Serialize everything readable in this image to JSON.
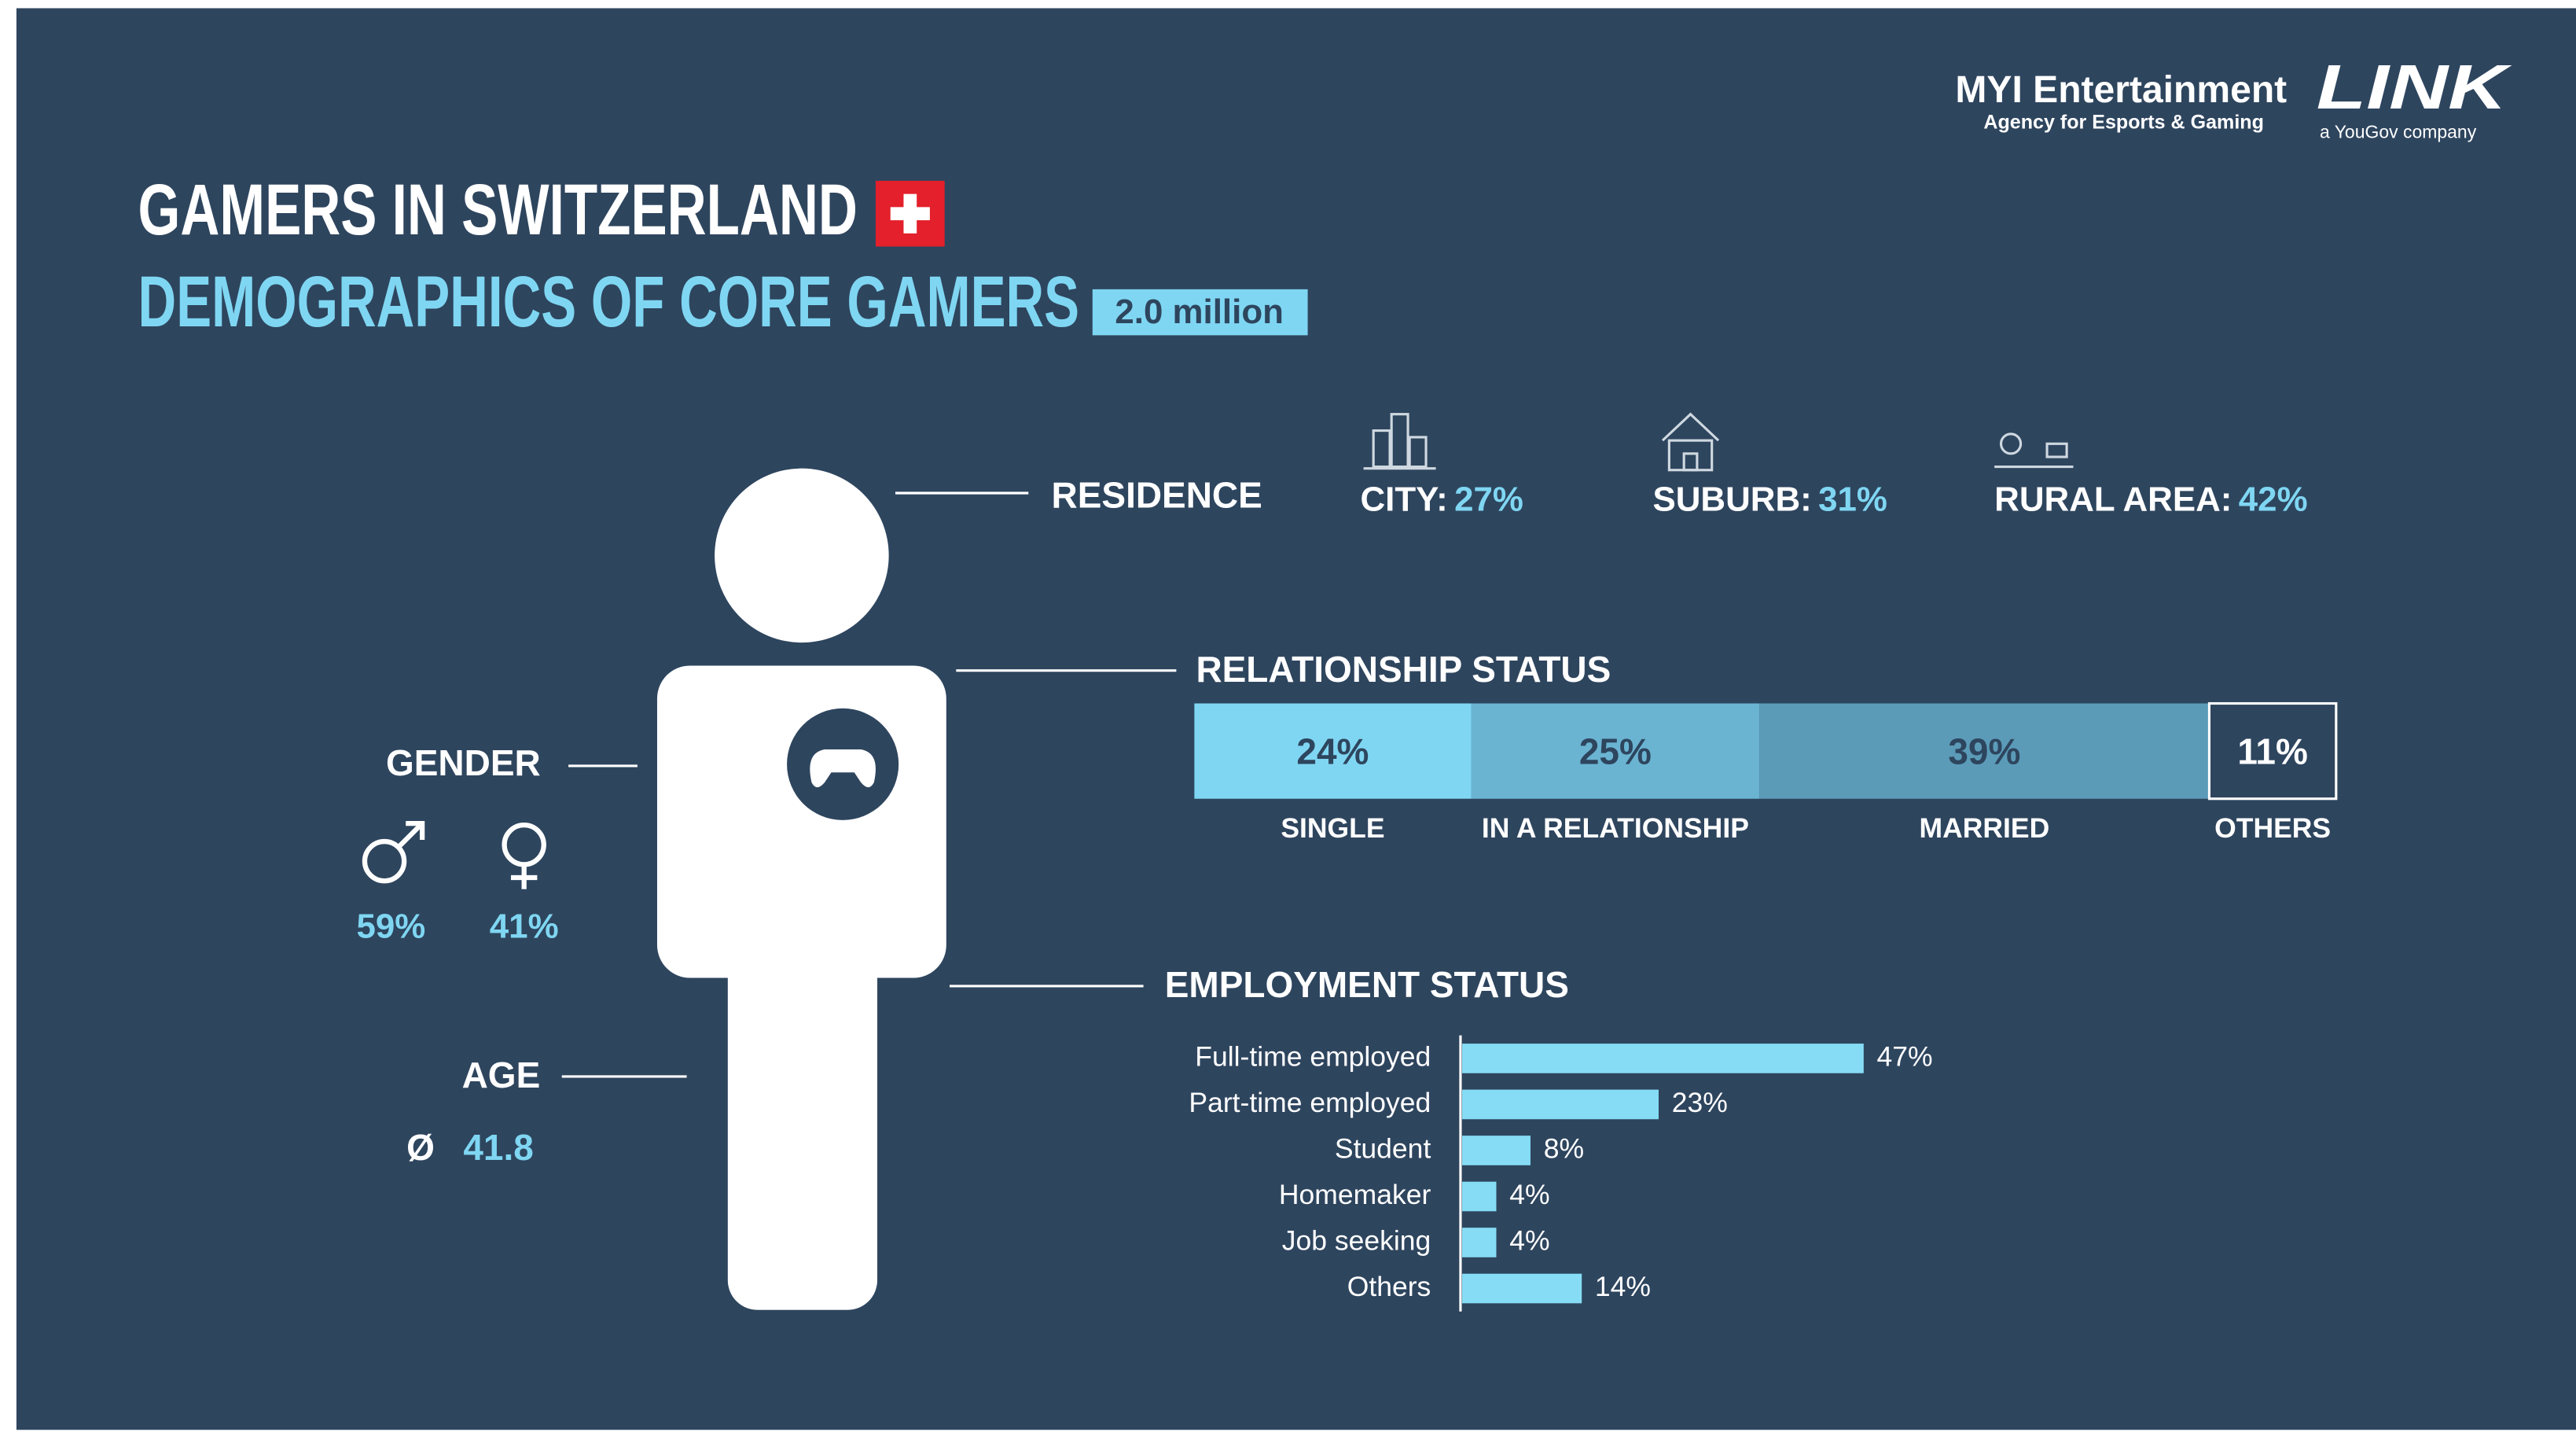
{
  "header": {
    "title": "GAMERS IN SWITZERLAND",
    "subtitle": "DEMOGRAPHICS OF CORE GAMERS",
    "badge": "2.0 million"
  },
  "logos": {
    "myi": "MYI Entertainment",
    "myi_tagline": "Agency for Esports & Gaming",
    "link": "LINK",
    "link_tagline": "a YouGov company"
  },
  "residence": {
    "label": "RESIDENCE",
    "items": [
      {
        "name": "CITY:",
        "value": "27%"
      },
      {
        "name": "SUBURB:",
        "value": "31%"
      },
      {
        "name": "RURAL AREA:",
        "value": "42%"
      }
    ]
  },
  "relationship": {
    "label": "RELATIONSHIP STATUS",
    "segments": [
      {
        "name": "SINGLE",
        "value": 24,
        "value_label": "24%",
        "color": "#7fd6f2"
      },
      {
        "name": "IN A RELATIONSHIP",
        "value": 25,
        "value_label": "25%",
        "color": "#6ab4d2"
      },
      {
        "name": "MARRIED",
        "value": 39,
        "value_label": "39%",
        "color": "#5b9bb8"
      },
      {
        "name": "OTHERS",
        "value": 11,
        "value_label": "11%",
        "color": "none"
      }
    ]
  },
  "employment": {
    "label": "EMPLOYMENT STATUS",
    "color": "#86dcf5",
    "items": [
      {
        "name": "Full-time employed",
        "value": 47,
        "value_label": "47%"
      },
      {
        "name": "Part-time employed",
        "value": 23,
        "value_label": "23%"
      },
      {
        "name": "Student",
        "value": 8,
        "value_label": "8%"
      },
      {
        "name": "Homemaker",
        "value": 4,
        "value_label": "4%"
      },
      {
        "name": "Job seeking",
        "value": 4,
        "value_label": "4%"
      },
      {
        "name": "Others",
        "value": 14,
        "value_label": "14%"
      }
    ]
  },
  "gender": {
    "label": "GENDER",
    "male": "59%",
    "female": "41%"
  },
  "age": {
    "label": "AGE",
    "symbol": "Ø",
    "value": "41.8"
  }
}
